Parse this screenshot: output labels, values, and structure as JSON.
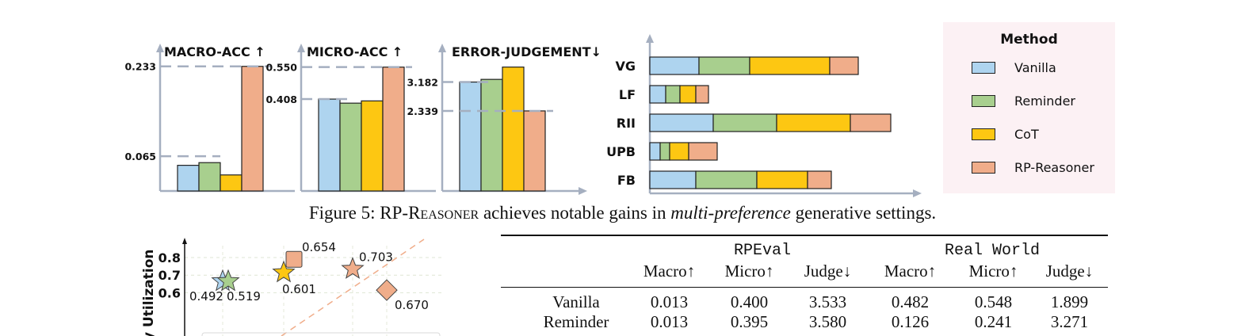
{
  "figure5": {
    "caption_prefix": "Figure 5: RP-",
    "caption_smallcaps": "Reasoner",
    "caption_middle": " achieves notable gains in ",
    "caption_italic": "multi-preference",
    "caption_suffix": " generative settings."
  },
  "legend": {
    "title": "Method",
    "items": [
      {
        "label": "Vanilla",
        "color": "#aed4ef"
      },
      {
        "label": "Reminder",
        "color": "#a8cf8e"
      },
      {
        "label": "CoT",
        "color": "#fdc712"
      },
      {
        "label": "RP-Reasoner",
        "color": "#f0ad8a"
      }
    ]
  },
  "chart_data": [
    {
      "type": "bar",
      "title": "MACRO-ACC ↑",
      "categories": [
        "Vanilla",
        "Reminder",
        "CoT",
        "RP-Reasoner"
      ],
      "values": [
        0.048,
        0.053,
        0.03,
        0.233
      ],
      "reference_labels": [
        "0.233",
        "0.065"
      ],
      "reference_values": [
        0.233,
        0.065
      ],
      "ylim": [
        0,
        0.24
      ]
    },
    {
      "type": "bar",
      "title": "MICRO-ACC ↑",
      "categories": [
        "Vanilla",
        "Reminder",
        "CoT",
        "RP-Reasoner"
      ],
      "values": [
        0.408,
        0.39,
        0.4,
        0.55
      ],
      "reference_labels": [
        "0.550",
        "0.408"
      ],
      "reference_values": [
        0.55,
        0.408
      ],
      "ylim": [
        0,
        0.57
      ]
    },
    {
      "type": "bar",
      "title": "ERROR-JUDGEMENT↓",
      "categories": [
        "Vanilla",
        "Reminder",
        "CoT",
        "RP-Reasoner"
      ],
      "values": [
        3.182,
        3.26,
        3.62,
        2.339
      ],
      "reference_labels": [
        "3.182",
        "2.339"
      ],
      "reference_values": [
        3.182,
        2.339
      ],
      "ylim": [
        0,
        3.75
      ]
    },
    {
      "type": "bar",
      "orientation": "horizontal-stacked",
      "categories": [
        "VG",
        "LF",
        "RII",
        "UPB",
        "FB"
      ],
      "series": [
        {
          "name": "Vanilla",
          "values": [
            62,
            20,
            80,
            13,
            58
          ]
        },
        {
          "name": "Reminder",
          "values": [
            64,
            18,
            80,
            12,
            77
          ]
        },
        {
          "name": "CoT",
          "values": [
            101,
            20,
            93,
            24,
            64
          ]
        },
        {
          "name": "RP-Reasoner",
          "values": [
            36,
            16,
            51,
            36,
            30
          ]
        }
      ],
      "xlim": [
        0,
        340
      ]
    },
    {
      "type": "scatter",
      "ylabel": "y Utilization",
      "yticks": [
        "0.8",
        "0.7",
        "0.6"
      ],
      "ytick_values": [
        0.8,
        0.7,
        0.6
      ],
      "points": [
        {
          "label": "0.492",
          "x": 0.48,
          "y": 0.665,
          "shape": "star",
          "color": "#aed4ef"
        },
        {
          "label": "0.519",
          "x": 0.55,
          "y": 0.665,
          "shape": "star",
          "color": "#a8cf8e"
        },
        {
          "label": "0.601",
          "x": 1.25,
          "y": 0.715,
          "shape": "star",
          "color": "#fdc712"
        },
        {
          "label": "0.654",
          "x": 1.38,
          "y": 0.79,
          "shape": "square",
          "color": "#f0ad8a"
        },
        {
          "label": "0.703",
          "x": 2.12,
          "y": 0.735,
          "shape": "star",
          "color": "#f0ad8a"
        },
        {
          "label": "0.670",
          "x": 2.55,
          "y": 0.615,
          "shape": "diamond",
          "color": "#f0ad8a"
        }
      ]
    }
  ],
  "table": {
    "group1": "RPEval",
    "group2": "Real World",
    "columns": [
      "Macro↑",
      "Micro↑",
      "Judge↓",
      "Macro↑",
      "Micro↑",
      "Judge↓"
    ],
    "rows": [
      {
        "method": "Vanilla",
        "cells": [
          "0.013",
          "0.400",
          "3.533",
          "0.482",
          "0.548",
          "1.899"
        ]
      },
      {
        "method": "Reminder",
        "cells": [
          "0.013",
          "0.395",
          "3.580",
          "0.126",
          "0.241",
          "3.271"
        ]
      }
    ]
  }
}
